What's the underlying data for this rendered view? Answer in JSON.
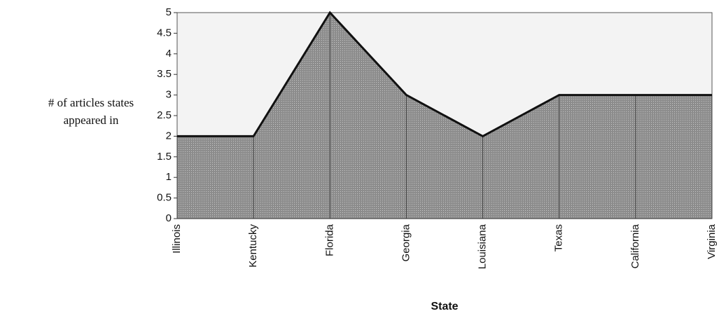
{
  "chart_data": {
    "type": "area",
    "x_label": "State",
    "y_label": "# of articles states appeared in",
    "categories": [
      "Illinois",
      "Kentucky",
      "Florida",
      "Georgia",
      "Louisiana",
      "Texas",
      "California",
      "Virginia"
    ],
    "values": [
      2,
      2,
      5,
      3,
      2,
      3,
      3,
      3
    ],
    "color": "#9a9a9a",
    "ylim": [
      0,
      5
    ],
    "yticks": [
      0,
      0.5,
      1,
      1.5,
      2,
      2.5,
      3,
      3.5,
      4,
      4.5,
      5
    ]
  }
}
